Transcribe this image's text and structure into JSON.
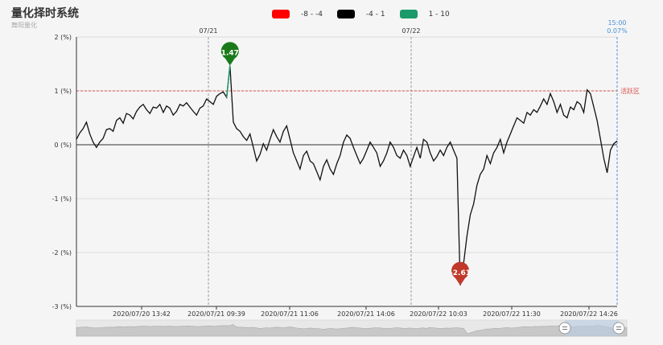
{
  "title": "量化择时系统",
  "subtitle": "舞阳量化",
  "legend": [
    {
      "label": "-8 - -4",
      "color": "#ff0000"
    },
    {
      "label": "-4 - 1",
      "color": "#000000"
    },
    {
      "label": "1 - 10",
      "color": "#1a9a6a"
    }
  ],
  "chart_data": {
    "type": "line",
    "ylim": [
      -3,
      2
    ],
    "yticks": [
      "2 (%)",
      "1 (%)",
      "0 (%)",
      "-1 (%)",
      "-2 (%)",
      "-3 (%)"
    ],
    "xticks": [
      "2020/07/20 13:42",
      "2020/07/21 09:39",
      "2020/07/21 11:06",
      "2020/07/21 14:06",
      "2020/07/22 10:03",
      "2020/07/22 11:30",
      "2020/07/22 14:26"
    ],
    "top_labels": [
      "07/21",
      "07/22"
    ],
    "last_point_label": {
      "time": "15:00",
      "value": "0.07%"
    },
    "reference_line": {
      "value": 1,
      "label": "活跃区"
    },
    "markers": [
      {
        "label": "1.47",
        "value": 1.47,
        "color": "#1a7a1a"
      },
      {
        "label": "-2.61",
        "value": -2.61,
        "color": "#c0392b"
      }
    ],
    "series": [
      {
        "values": [
          0.1,
          0.22,
          0.3,
          0.42,
          0.2,
          0.05,
          -0.05,
          0.05,
          0.12,
          0.28,
          0.3,
          0.25,
          0.45,
          0.5,
          0.4,
          0.58,
          0.55,
          0.48,
          0.62,
          0.7,
          0.75,
          0.65,
          0.58,
          0.7,
          0.68,
          0.75,
          0.6,
          0.72,
          0.68,
          0.55,
          0.62,
          0.75,
          0.72,
          0.78,
          0.7,
          0.62,
          0.55,
          0.68,
          0.72,
          0.85,
          0.8,
          0.75,
          0.9,
          0.95,
          0.98,
          0.88,
          1.47,
          0.42,
          0.3,
          0.25,
          0.15,
          0.08,
          0.2,
          -0.05,
          -0.3,
          -0.18,
          0.02,
          -0.1,
          0.1,
          0.28,
          0.15,
          0.05,
          0.25,
          0.35,
          0.1,
          -0.15,
          -0.3,
          -0.45,
          -0.2,
          -0.12,
          -0.3,
          -0.35,
          -0.5,
          -0.65,
          -0.4,
          -0.28,
          -0.45,
          -0.55,
          -0.35,
          -0.2,
          0.05,
          0.18,
          0.12,
          -0.05,
          -0.2,
          -0.35,
          -0.25,
          -0.1,
          0.05,
          -0.05,
          -0.15,
          -0.4,
          -0.3,
          -0.15,
          0.05,
          -0.05,
          -0.2,
          -0.25,
          -0.1,
          -0.2,
          -0.4,
          -0.22,
          -0.05,
          -0.25,
          0.1,
          0.05,
          -0.15,
          -0.3,
          -0.22,
          -0.1,
          -0.2,
          -0.05,
          0.05,
          -0.1,
          -0.25,
          -2.61,
          -2.2,
          -1.7,
          -1.3,
          -1.1,
          -0.75,
          -0.55,
          -0.45,
          -0.2,
          -0.35,
          -0.15,
          -0.05,
          0.1,
          -0.15,
          0.05,
          0.2,
          0.35,
          0.5,
          0.45,
          0.4,
          0.6,
          0.55,
          0.65,
          0.6,
          0.72,
          0.85,
          0.75,
          0.95,
          0.8,
          0.6,
          0.75,
          0.55,
          0.5,
          0.7,
          0.65,
          0.8,
          0.75,
          0.6,
          1.02,
          0.95,
          0.7,
          0.45,
          0.1,
          -0.25,
          -0.52,
          -0.1,
          0.02,
          0.07
        ]
      }
    ]
  }
}
